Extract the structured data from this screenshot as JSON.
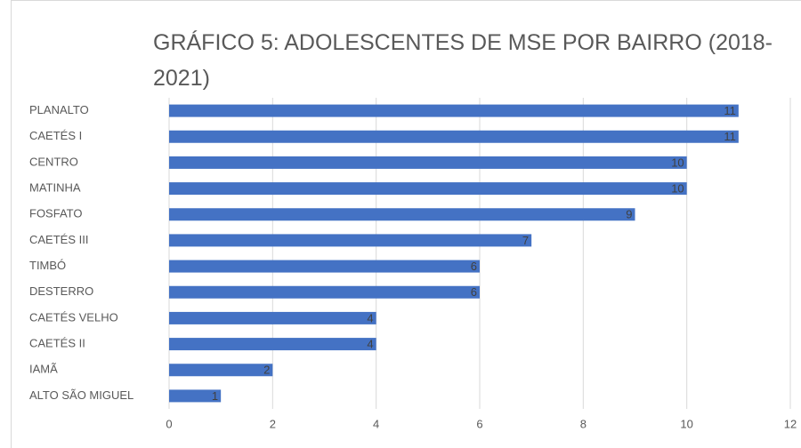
{
  "chart_data": {
    "type": "barh",
    "title": "GRÁFICO 5: ADOLESCENTES DE MSE POR BAIRRO (2018-2021)",
    "categories": [
      "PLANALTO",
      "CAETÉS I",
      "CENTRO",
      "MATINHA",
      "FOSFATO",
      "CAETÉS III",
      "TIMBÓ",
      "DESTERRO",
      "CAETÉS VELHO",
      "CAETÉS II",
      "IAMÃ",
      "ALTO SÃO MIGUEL"
    ],
    "values": [
      11,
      11,
      10,
      10,
      9,
      7,
      6,
      6,
      4,
      4,
      2,
      1
    ],
    "color": "#4472c4",
    "xlim": [
      0,
      12
    ],
    "xticks": [
      0,
      2,
      4,
      6,
      8,
      10,
      12
    ],
    "grid": true
  }
}
